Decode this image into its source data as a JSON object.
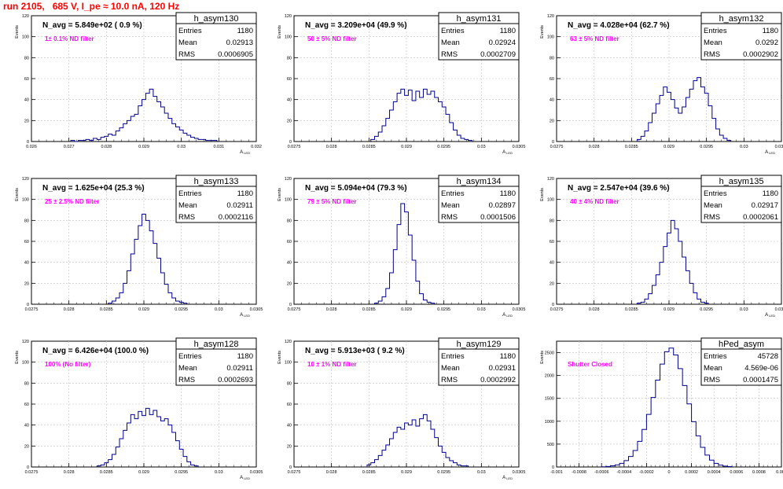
{
  "page": {
    "title": "run 2105,   685 V, I_pe ≈ 10.0 nA, 120 Hz"
  },
  "chart_data": [
    {
      "type": "histogram",
      "name": "h_asym130",
      "ylabel": "Events",
      "xlabel": "A",
      "xlim": [
        0.026,
        0.032
      ],
      "ylim": [
        0,
        120
      ],
      "xticks": [
        "0.026",
        "0.027",
        "0.028",
        "0.029",
        "0.03",
        "0.031",
        "0.032"
      ],
      "yticks": [
        "0",
        "20",
        "40",
        "60",
        "80",
        "100",
        "120"
      ],
      "stats": {
        "entries": "1180",
        "mean": "0.02913",
        "rms": "0.0006905"
      },
      "annotation": "N_avg = 5.849e+02 ( 0.9 %)",
      "filter": "1± 0.1% ND filter",
      "bins": [
        [
          0.0271,
          1
        ],
        [
          0.0272,
          0
        ],
        [
          0.0273,
          1
        ],
        [
          0.0274,
          1
        ],
        [
          0.0275,
          2
        ],
        [
          0.0276,
          1
        ],
        [
          0.0277,
          3
        ],
        [
          0.0278,
          2
        ],
        [
          0.0279,
          4
        ],
        [
          0.028,
          5
        ],
        [
          0.0281,
          7
        ],
        [
          0.0282,
          6
        ],
        [
          0.0283,
          10
        ],
        [
          0.0284,
          13
        ],
        [
          0.0285,
          17
        ],
        [
          0.0286,
          20
        ],
        [
          0.0287,
          24
        ],
        [
          0.0288,
          26
        ],
        [
          0.0289,
          34
        ],
        [
          0.029,
          40
        ],
        [
          0.0291,
          46
        ],
        [
          0.0292,
          50
        ],
        [
          0.0293,
          43
        ],
        [
          0.0294,
          38
        ],
        [
          0.0295,
          33
        ],
        [
          0.0296,
          27
        ],
        [
          0.0297,
          22
        ],
        [
          0.0298,
          17
        ],
        [
          0.0299,
          14
        ],
        [
          0.03,
          11
        ],
        [
          0.0301,
          8
        ],
        [
          0.0302,
          6
        ],
        [
          0.0303,
          4
        ],
        [
          0.0304,
          3
        ],
        [
          0.0305,
          2
        ],
        [
          0.0306,
          2
        ],
        [
          0.0307,
          1
        ],
        [
          0.0308,
          1
        ],
        [
          0.0309,
          1
        ]
      ]
    },
    {
      "type": "histogram",
      "name": "h_asym131",
      "ylabel": "Events",
      "xlabel": "A",
      "xlim": [
        0.0275,
        0.0305
      ],
      "ylim": [
        0,
        120
      ],
      "xticks": [
        "0.0275",
        "0.028",
        "0.0285",
        "0.029",
        "0.0295",
        "0.03",
        "0.0305"
      ],
      "yticks": [
        "0",
        "20",
        "40",
        "60",
        "80",
        "100",
        "120"
      ],
      "stats": {
        "entries": "1180",
        "mean": "0.02924",
        "rms": "0.0002709"
      },
      "annotation": "N_avg = 3.209e+04 (49.9 %)",
      "filter": "50 ± 5% ND filter",
      "bins": [
        [
          0.02855,
          2
        ],
        [
          0.0286,
          5
        ],
        [
          0.02865,
          9
        ],
        [
          0.0287,
          15
        ],
        [
          0.02875,
          22
        ],
        [
          0.0288,
          30
        ],
        [
          0.02885,
          38
        ],
        [
          0.0289,
          46
        ],
        [
          0.02895,
          50
        ],
        [
          0.029,
          44
        ],
        [
          0.02905,
          49
        ],
        [
          0.0291,
          39
        ],
        [
          0.02915,
          48
        ],
        [
          0.0292,
          42
        ],
        [
          0.02925,
          50
        ],
        [
          0.0293,
          45
        ],
        [
          0.02935,
          48
        ],
        [
          0.0294,
          42
        ],
        [
          0.02945,
          38
        ],
        [
          0.0295,
          33
        ],
        [
          0.02955,
          26
        ],
        [
          0.0296,
          18
        ],
        [
          0.02965,
          11
        ],
        [
          0.0297,
          6
        ],
        [
          0.02975,
          3
        ],
        [
          0.0298,
          2
        ],
        [
          0.02985,
          1
        ]
      ]
    },
    {
      "type": "histogram",
      "name": "h_asym132",
      "ylabel": "Events",
      "xlabel": "A",
      "xlim": [
        0.0275,
        0.0305
      ],
      "ylim": [
        0,
        120
      ],
      "xticks": [
        "0.0275",
        "0.028",
        "0.0285",
        "0.029",
        "0.0295",
        "0.03",
        "0.0305"
      ],
      "yticks": [
        "0",
        "20",
        "40",
        "60",
        "80",
        "100",
        "120"
      ],
      "stats": {
        "entries": "1180",
        "mean": "0.0292",
        "rms": "0.0002902"
      },
      "annotation": "N_avg = 4.028e+04 (62.7 %)",
      "filter": "63 ± 5% ND filter",
      "bins": [
        [
          0.0286,
          2
        ],
        [
          0.02865,
          5
        ],
        [
          0.0287,
          10
        ],
        [
          0.02875,
          18
        ],
        [
          0.0288,
          27
        ],
        [
          0.02885,
          36
        ],
        [
          0.0289,
          44
        ],
        [
          0.02895,
          52
        ],
        [
          0.029,
          47
        ],
        [
          0.02905,
          40
        ],
        [
          0.0291,
          32
        ],
        [
          0.02915,
          27
        ],
        [
          0.0292,
          33
        ],
        [
          0.02925,
          42
        ],
        [
          0.0293,
          50
        ],
        [
          0.02935,
          58
        ],
        [
          0.0294,
          61
        ],
        [
          0.02945,
          52
        ],
        [
          0.0295,
          46
        ],
        [
          0.02955,
          34
        ],
        [
          0.0296,
          22
        ],
        [
          0.02965,
          12
        ],
        [
          0.0297,
          6
        ],
        [
          0.02975,
          3
        ],
        [
          0.0298,
          1
        ]
      ]
    },
    {
      "type": "histogram",
      "name": "h_asym133",
      "ylabel": "Events",
      "xlabel": "A",
      "xlim": [
        0.0275,
        0.0305
      ],
      "ylim": [
        0,
        120
      ],
      "xticks": [
        "0.0275",
        "0.028",
        "0.0285",
        "0.029",
        "0.0295",
        "0.03",
        "0.0305"
      ],
      "yticks": [
        "0",
        "20",
        "40",
        "60",
        "80",
        "100",
        "120"
      ],
      "stats": {
        "entries": "1180",
        "mean": "0.02911",
        "rms": "0.0002116"
      },
      "annotation": "N_avg = 1.625e+04 (25.3 %)",
      "filter": "25 ± 2.5% ND filter",
      "bins": [
        [
          0.02855,
          1
        ],
        [
          0.0286,
          3
        ],
        [
          0.02865,
          6
        ],
        [
          0.0287,
          11
        ],
        [
          0.02875,
          20
        ],
        [
          0.0288,
          32
        ],
        [
          0.02885,
          48
        ],
        [
          0.0289,
          62
        ],
        [
          0.02895,
          75
        ],
        [
          0.029,
          86
        ],
        [
          0.02905,
          80
        ],
        [
          0.0291,
          70
        ],
        [
          0.02915,
          58
        ],
        [
          0.0292,
          44
        ],
        [
          0.02925,
          30
        ],
        [
          0.0293,
          19
        ],
        [
          0.02935,
          11
        ],
        [
          0.0294,
          6
        ],
        [
          0.02945,
          3
        ],
        [
          0.0295,
          2
        ],
        [
          0.02955,
          1
        ]
      ]
    },
    {
      "type": "histogram",
      "name": "h_asym134",
      "ylabel": "Events",
      "xlabel": "A",
      "xlim": [
        0.0275,
        0.0305
      ],
      "ylim": [
        0,
        120
      ],
      "xticks": [
        "0.0275",
        "0.028",
        "0.0285",
        "0.029",
        "0.0295",
        "0.03",
        "0.0305"
      ],
      "yticks": [
        "0",
        "20",
        "40",
        "60",
        "80",
        "100",
        "120"
      ],
      "stats": {
        "entries": "1180",
        "mean": "0.02897",
        "rms": "0.0001506"
      },
      "annotation": "N_avg = 5.094e+04 (79.3 %)",
      "filter": "79 ± 5% ND filter",
      "bins": [
        [
          0.0286,
          1
        ],
        [
          0.02865,
          3
        ],
        [
          0.0287,
          7
        ],
        [
          0.02875,
          15
        ],
        [
          0.0288,
          30
        ],
        [
          0.02885,
          52
        ],
        [
          0.0289,
          76
        ],
        [
          0.02895,
          96
        ],
        [
          0.029,
          88
        ],
        [
          0.02905,
          66
        ],
        [
          0.0291,
          42
        ],
        [
          0.02915,
          22
        ],
        [
          0.0292,
          10
        ],
        [
          0.02925,
          4
        ],
        [
          0.0293,
          2
        ],
        [
          0.02935,
          1
        ]
      ]
    },
    {
      "type": "histogram",
      "name": "h_asym135",
      "ylabel": "Events",
      "xlabel": "A",
      "xlim": [
        0.0275,
        0.0305
      ],
      "ylim": [
        0,
        120
      ],
      "xticks": [
        "0.0275",
        "0.028",
        "0.0285",
        "0.029",
        "0.0295",
        "0.03",
        "0.0305"
      ],
      "yticks": [
        "0",
        "20",
        "40",
        "60",
        "80",
        "100",
        "120"
      ],
      "stats": {
        "entries": "1180",
        "mean": "0.02917",
        "rms": "0.0002061"
      },
      "annotation": "N_avg = 2.547e+04 (39.6 %)",
      "filter": "40 ± 4% ND filter",
      "bins": [
        [
          0.0286,
          1
        ],
        [
          0.02865,
          2
        ],
        [
          0.0287,
          5
        ],
        [
          0.02875,
          10
        ],
        [
          0.0288,
          18
        ],
        [
          0.02885,
          28
        ],
        [
          0.0289,
          40
        ],
        [
          0.02895,
          55
        ],
        [
          0.029,
          68
        ],
        [
          0.02905,
          80
        ],
        [
          0.0291,
          72
        ],
        [
          0.02915,
          60
        ],
        [
          0.0292,
          45
        ],
        [
          0.02925,
          32
        ],
        [
          0.0293,
          20
        ],
        [
          0.02935,
          11
        ],
        [
          0.0294,
          5
        ],
        [
          0.02945,
          2
        ],
        [
          0.0295,
          1
        ]
      ]
    },
    {
      "type": "histogram",
      "name": "h_asym128",
      "ylabel": "Events",
      "xlabel": "A",
      "xlim": [
        0.0275,
        0.0305
      ],
      "ylim": [
        0,
        120
      ],
      "xticks": [
        "0.0275",
        "0.028",
        "0.0285",
        "0.029",
        "0.0295",
        "0.03",
        "0.0305"
      ],
      "yticks": [
        "0",
        "20",
        "40",
        "60",
        "80",
        "100",
        "120"
      ],
      "stats": {
        "entries": "1180",
        "mean": "0.02911",
        "rms": "0.0002693"
      },
      "annotation": "N_avg = 6.426e+04 (100.0 %)",
      "filter": "100% (No filter)",
      "bins": [
        [
          0.0284,
          1
        ],
        [
          0.02845,
          2
        ],
        [
          0.0285,
          4
        ],
        [
          0.02855,
          7
        ],
        [
          0.0286,
          12
        ],
        [
          0.02865,
          19
        ],
        [
          0.0287,
          27
        ],
        [
          0.02875,
          35
        ],
        [
          0.0288,
          42
        ],
        [
          0.02885,
          50
        ],
        [
          0.0289,
          46
        ],
        [
          0.02895,
          53
        ],
        [
          0.029,
          49
        ],
        [
          0.02905,
          56
        ],
        [
          0.0291,
          50
        ],
        [
          0.02915,
          54
        ],
        [
          0.0292,
          48
        ],
        [
          0.02925,
          44
        ],
        [
          0.0293,
          46
        ],
        [
          0.02935,
          40
        ],
        [
          0.0294,
          33
        ],
        [
          0.02945,
          25
        ],
        [
          0.0295,
          17
        ],
        [
          0.02955,
          10
        ],
        [
          0.0296,
          5
        ],
        [
          0.02965,
          2
        ],
        [
          0.0297,
          1
        ]
      ]
    },
    {
      "type": "histogram",
      "name": "h_asym129",
      "ylabel": "Events",
      "xlabel": "A",
      "xlim": [
        0.0275,
        0.0305
      ],
      "ylim": [
        0,
        120
      ],
      "xticks": [
        "0.0275",
        "0.028",
        "0.0285",
        "0.029",
        "0.0295",
        "0.03",
        "0.0305"
      ],
      "yticks": [
        "0",
        "20",
        "40",
        "60",
        "80",
        "100",
        "120"
      ],
      "stats": {
        "entries": "1180",
        "mean": "0.02931",
        "rms": "0.0002992"
      },
      "annotation": "N_avg = 5.913e+03 ( 9.2 %)",
      "filter": "10 ± 1% ND filter",
      "bins": [
        [
          0.0285,
          2
        ],
        [
          0.02855,
          4
        ],
        [
          0.0286,
          7
        ],
        [
          0.02865,
          11
        ],
        [
          0.0287,
          16
        ],
        [
          0.02875,
          21
        ],
        [
          0.0288,
          27
        ],
        [
          0.02885,
          33
        ],
        [
          0.0289,
          38
        ],
        [
          0.02895,
          36
        ],
        [
          0.029,
          42
        ],
        [
          0.02905,
          40
        ],
        [
          0.0291,
          45
        ],
        [
          0.02915,
          39
        ],
        [
          0.0292,
          46
        ],
        [
          0.02925,
          50
        ],
        [
          0.0293,
          44
        ],
        [
          0.02935,
          36
        ],
        [
          0.0294,
          28
        ],
        [
          0.02945,
          20
        ],
        [
          0.0295,
          14
        ],
        [
          0.02955,
          9
        ],
        [
          0.0296,
          6
        ],
        [
          0.02965,
          4
        ],
        [
          0.0297,
          2
        ],
        [
          0.02975,
          1
        ],
        [
          0.0298,
          1
        ]
      ]
    },
    {
      "type": "histogram",
      "name": "hPed_asym",
      "ylabel": "Events",
      "xlabel": "",
      "xlim": [
        -0.001,
        0.001
      ],
      "ylim": [
        0,
        2750
      ],
      "xticks": [
        "-0.001",
        "-0.0008",
        "-0.0006",
        "-0.0004",
        "-0.0002",
        "0",
        "0.0002",
        "0.0004",
        "0.0006",
        "0.0008",
        "0.001"
      ],
      "yticks": [
        "0",
        "500",
        "1000",
        "1500",
        "2000",
        "2500"
      ],
      "stats": {
        "entries": "45728",
        "mean": "4.569e-06",
        "rms": "0.0001475"
      },
      "annotation": "",
      "filter": "Shutter Closed",
      "bins": [
        [
          -0.00058,
          5
        ],
        [
          -0.00054,
          10
        ],
        [
          -0.0005,
          25
        ],
        [
          -0.00046,
          45
        ],
        [
          -0.00042,
          80
        ],
        [
          -0.00038,
          140
        ],
        [
          -0.00034,
          230
        ],
        [
          -0.0003,
          360
        ],
        [
          -0.00026,
          560
        ],
        [
          -0.00022,
          820
        ],
        [
          -0.00018,
          1150
        ],
        [
          -0.00014,
          1520
        ],
        [
          -0.0001,
          1900
        ],
        [
          -6e-05,
          2250
        ],
        [
          -2e-05,
          2520
        ],
        [
          2e-05,
          2600
        ],
        [
          6e-05,
          2450
        ],
        [
          0.0001,
          2150
        ],
        [
          0.00014,
          1780
        ],
        [
          0.00018,
          1380
        ],
        [
          0.00022,
          990
        ],
        [
          0.00026,
          680
        ],
        [
          0.0003,
          430
        ],
        [
          0.00034,
          260
        ],
        [
          0.00038,
          150
        ],
        [
          0.00042,
          80
        ],
        [
          0.00046,
          40
        ],
        [
          0.0005,
          20
        ],
        [
          0.00054,
          8
        ]
      ]
    }
  ]
}
